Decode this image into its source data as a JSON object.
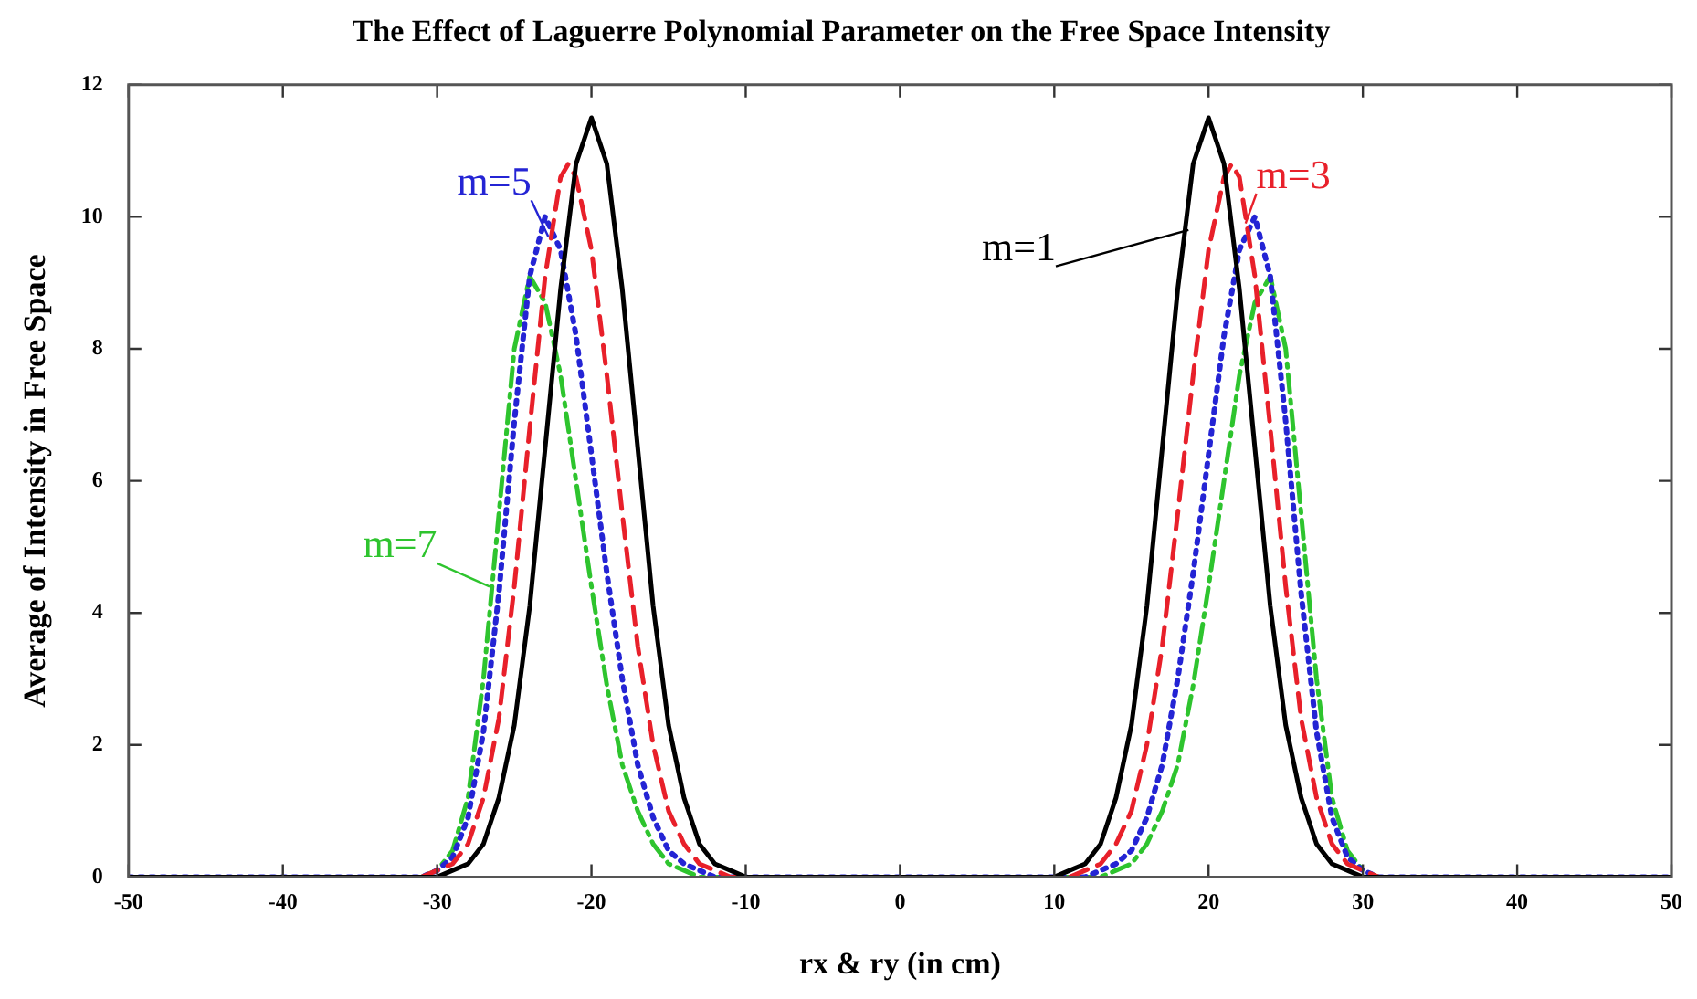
{
  "chart_data": {
    "type": "line",
    "title": "The Effect of Laguerre Polynomial Parameter on the Free Space Intensity",
    "xlabel": "rx & ry (in cm)",
    "ylabel": "Average of Intensity in Free Space",
    "xlim": [
      -50,
      50
    ],
    "ylim": [
      0,
      12
    ],
    "xticks": [
      -50,
      -40,
      -30,
      -20,
      -10,
      0,
      10,
      20,
      30,
      40,
      50
    ],
    "yticks": [
      0,
      2,
      4,
      6,
      8,
      10,
      12
    ],
    "grid": false,
    "legend": "top",
    "marker": "none",
    "series": [
      {
        "name": "m=1",
        "color": "#000000",
        "line_style": "solid",
        "x": [
          -50,
          -31,
          -30,
          -29,
          -28,
          -27,
          -26,
          -25,
          -24,
          -23,
          -22,
          -21,
          -20,
          -19,
          -18,
          -17,
          -16,
          -15,
          -14,
          -13,
          -12,
          -11,
          -10,
          0,
          10,
          11,
          12,
          13,
          14,
          15,
          16,
          17,
          18,
          19,
          20,
          21,
          22,
          23,
          24,
          25,
          26,
          27,
          28,
          29,
          30,
          31,
          50
        ],
        "values": [
          0,
          0,
          0,
          0.1,
          0.2,
          0.5,
          1.2,
          2.3,
          4.1,
          6.5,
          8.9,
          10.8,
          11.5,
          10.8,
          8.9,
          6.5,
          4.1,
          2.3,
          1.2,
          0.5,
          0.2,
          0.1,
          0,
          0,
          0,
          0.1,
          0.2,
          0.5,
          1.2,
          2.3,
          4.1,
          6.5,
          8.9,
          10.8,
          11.5,
          10.8,
          8.9,
          6.5,
          4.1,
          2.3,
          1.2,
          0.5,
          0.2,
          0.1,
          0,
          0,
          0
        ]
      },
      {
        "name": "m=3",
        "color": "#e8202a",
        "line_style": "dashed",
        "x": [
          -50,
          -31,
          -30,
          -29,
          -28,
          -27,
          -26,
          -25,
          -24,
          -23,
          -22,
          -21.5,
          -21,
          -20,
          -19,
          -18,
          -17,
          -16,
          -15,
          -14,
          -13,
          -12,
          -11,
          -10,
          0,
          10,
          11,
          12,
          13,
          14,
          15,
          16,
          17,
          18,
          19,
          20,
          21,
          21.5,
          22,
          23,
          24,
          25,
          26,
          27,
          28,
          29,
          30,
          31,
          50
        ],
        "values": [
          0,
          0,
          0.1,
          0.2,
          0.5,
          1.2,
          2.4,
          4.4,
          6.8,
          9.1,
          10.6,
          10.8,
          10.6,
          9.5,
          7.6,
          5.5,
          3.5,
          2.0,
          1.0,
          0.5,
          0.2,
          0.1,
          0,
          0,
          0,
          0,
          0,
          0.1,
          0.2,
          0.5,
          1.0,
          2.0,
          3.5,
          5.5,
          7.6,
          9.5,
          10.6,
          10.8,
          10.6,
          9.1,
          6.8,
          4.4,
          2.4,
          1.2,
          0.5,
          0.2,
          0.1,
          0,
          0
        ]
      },
      {
        "name": "m=5",
        "color": "#2424d4",
        "line_style": "dotted",
        "x": [
          -50,
          -31,
          -30,
          -29,
          -28,
          -27,
          -26,
          -25,
          -24,
          -23,
          -22,
          -21,
          -20,
          -19,
          -18,
          -17,
          -16,
          -15,
          -14,
          -13,
          -12,
          -11,
          -10,
          0,
          10,
          11,
          12,
          13,
          14,
          15,
          16,
          17,
          18,
          19,
          20,
          21,
          22,
          23,
          24,
          25,
          26,
          27,
          28,
          29,
          30,
          31,
          50
        ],
        "values": [
          0,
          0,
          0.1,
          0.3,
          0.9,
          2.2,
          4.3,
          6.9,
          9.1,
          10.0,
          9.5,
          8.2,
          6.4,
          4.6,
          3.0,
          1.7,
          0.9,
          0.4,
          0.2,
          0.1,
          0,
          0,
          0,
          0,
          0,
          0,
          0,
          0.1,
          0.2,
          0.4,
          0.9,
          1.7,
          3.0,
          4.6,
          6.4,
          8.2,
          9.5,
          10.0,
          9.1,
          6.9,
          4.3,
          2.2,
          0.9,
          0.3,
          0.1,
          0,
          0
        ]
      },
      {
        "name": "m=7",
        "color": "#2ec42e",
        "line_style": "dashdot",
        "x": [
          -50,
          -31,
          -30,
          -29,
          -28,
          -27,
          -26,
          -25,
          -24,
          -23,
          -22,
          -21,
          -20,
          -19,
          -18,
          -17,
          -16,
          -15,
          -14,
          -13,
          -12,
          -11,
          -10,
          0,
          10,
          11,
          12,
          13,
          14,
          15,
          16,
          17,
          18,
          19,
          20,
          21,
          22,
          23,
          24,
          25,
          26,
          27,
          28,
          29,
          30,
          31,
          50
        ],
        "values": [
          0,
          0,
          0.1,
          0.4,
          1.2,
          3.0,
          5.5,
          8.0,
          9.1,
          8.7,
          7.6,
          6.0,
          4.4,
          2.9,
          1.7,
          1.0,
          0.5,
          0.2,
          0.1,
          0,
          0,
          0,
          0,
          0,
          0,
          0,
          0,
          0,
          0.1,
          0.2,
          0.5,
          1.0,
          1.7,
          2.9,
          4.4,
          6.0,
          7.6,
          8.7,
          9.1,
          8.0,
          5.5,
          3.0,
          1.2,
          0.4,
          0.1,
          0,
          0
        ]
      }
    ]
  }
}
